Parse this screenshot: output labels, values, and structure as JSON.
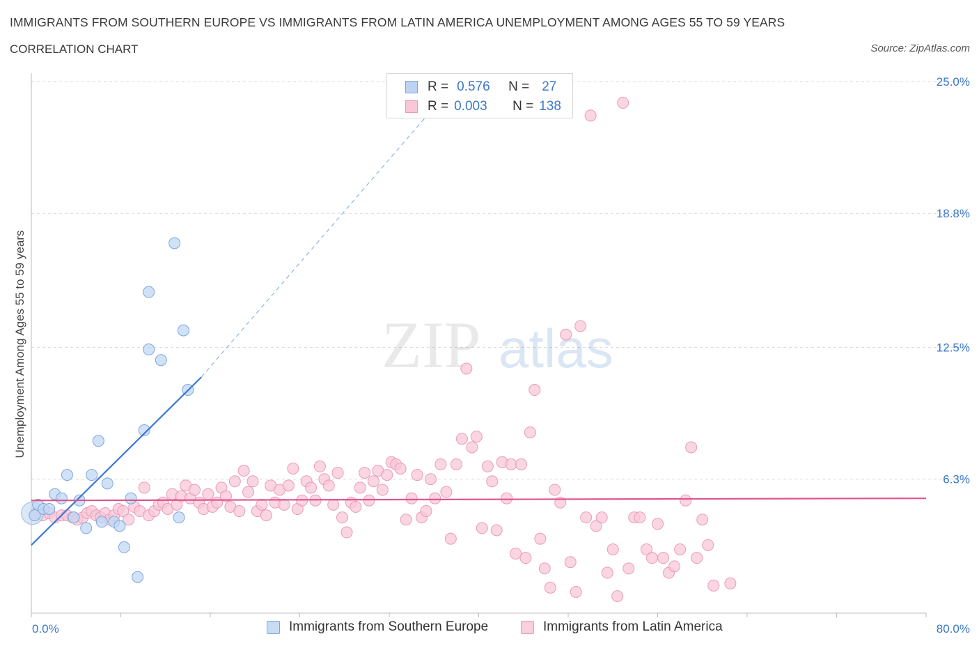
{
  "title": "IMMIGRANTS FROM SOUTHERN EUROPE VS IMMIGRANTS FROM LATIN AMERICA UNEMPLOYMENT AMONG AGES 55 TO 59 YEARS",
  "subtitle": "CORRELATION CHART",
  "source": "Source: ZipAtlas.com",
  "watermark": {
    "zip": "ZIP",
    "atlas": "atlas"
  },
  "legend_top": {
    "rows": [
      {
        "r_label": "R =",
        "r_value": "0.576",
        "n_label": "N =",
        "n_value": "27",
        "color": "#7aa7e0",
        "fill": "#bcd3f3"
      },
      {
        "r_label": "R =",
        "r_value": "0.003",
        "n_label": "N =",
        "n_value": "138",
        "color": "#eb9ab8",
        "fill": "#f8c6d7"
      }
    ]
  },
  "legend_bottom": [
    {
      "label": "Immigrants from Southern Europe",
      "color": "#7aa7e0",
      "fill": "#bcd3f3"
    },
    {
      "label": "Immigrants from Latin America",
      "color": "#eb9ab8",
      "fill": "#f8c6d7"
    }
  ],
  "chart_data": {
    "type": "scatter",
    "ylabel": "Unemployment Among Ages 55 to 59 years",
    "xlabel": "",
    "x_tick_labels": [
      "0.0%",
      "80.0%"
    ],
    "y_tick_labels": [
      "6.3%",
      "12.5%",
      "18.8%",
      "25.0%"
    ],
    "y_ticks": [
      6.3,
      12.5,
      18.8,
      25.0
    ],
    "xlim": [
      0,
      80
    ],
    "ylim": [
      0,
      25.0
    ],
    "grid": true,
    "colors": {
      "blue": "#3b78d4",
      "pink": "#e0548a",
      "blue_fill": "#c2d7f3",
      "pink_fill": "#f8c8d8"
    },
    "series": [
      {
        "name": "Immigrants from Southern Europe",
        "color": "#3b78d4",
        "points": [
          [
            0.3,
            4.6
          ],
          [
            0.6,
            5.1
          ],
          [
            1.1,
            4.9
          ],
          [
            1.6,
            4.9
          ],
          [
            2.1,
            5.6
          ],
          [
            2.7,
            5.4
          ],
          [
            3.2,
            6.5
          ],
          [
            3.8,
            4.5
          ],
          [
            4.3,
            5.3
          ],
          [
            4.9,
            4.0
          ],
          [
            5.4,
            6.5
          ],
          [
            6.0,
            8.1
          ],
          [
            6.3,
            4.3
          ],
          [
            6.8,
            6.1
          ],
          [
            7.4,
            4.3
          ],
          [
            7.9,
            4.1
          ],
          [
            8.3,
            3.1
          ],
          [
            8.9,
            5.4
          ],
          [
            9.5,
            1.7
          ],
          [
            10.1,
            8.6
          ],
          [
            10.5,
            12.4
          ],
          [
            10.5,
            15.1
          ],
          [
            11.6,
            11.9
          ],
          [
            12.8,
            17.4
          ],
          [
            13.2,
            4.5
          ],
          [
            13.6,
            13.3
          ],
          [
            14.0,
            10.5
          ]
        ],
        "trend": {
          "x": [
            0,
            15.2
          ],
          "y": [
            3.2,
            11.1
          ],
          "extended_to": [
            38,
            25.0
          ]
        }
      },
      {
        "name": "Immigrants from Latin America",
        "color": "#e0548a",
        "points": [
          [
            0.4,
            4.7
          ],
          [
            1.0,
            4.6
          ],
          [
            1.6,
            4.7
          ],
          [
            2.1,
            4.5
          ],
          [
            2.7,
            4.6
          ],
          [
            3.2,
            4.6
          ],
          [
            3.7,
            4.5
          ],
          [
            4.1,
            4.4
          ],
          [
            4.6,
            4.5
          ],
          [
            5.0,
            4.7
          ],
          [
            5.4,
            4.8
          ],
          [
            5.8,
            4.6
          ],
          [
            6.2,
            4.5
          ],
          [
            6.6,
            4.7
          ],
          [
            7.0,
            4.4
          ],
          [
            7.4,
            4.6
          ],
          [
            7.8,
            4.9
          ],
          [
            8.2,
            4.8
          ],
          [
            8.7,
            4.4
          ],
          [
            9.2,
            5.0
          ],
          [
            9.7,
            4.8
          ],
          [
            10.1,
            5.9
          ],
          [
            10.5,
            4.6
          ],
          [
            11.0,
            4.8
          ],
          [
            11.4,
            5.1
          ],
          [
            11.8,
            5.2
          ],
          [
            12.2,
            4.9
          ],
          [
            12.6,
            5.6
          ],
          [
            13.0,
            5.1
          ],
          [
            13.4,
            5.5
          ],
          [
            13.8,
            6.0
          ],
          [
            14.2,
            5.4
          ],
          [
            14.6,
            5.8
          ],
          [
            15.0,
            5.2
          ],
          [
            15.4,
            4.9
          ],
          [
            15.8,
            5.6
          ],
          [
            16.2,
            5.0
          ],
          [
            16.6,
            5.2
          ],
          [
            17.0,
            5.9
          ],
          [
            17.4,
            5.5
          ],
          [
            17.8,
            5.0
          ],
          [
            18.2,
            6.2
          ],
          [
            18.6,
            4.8
          ],
          [
            19.0,
            6.7
          ],
          [
            19.4,
            5.7
          ],
          [
            19.8,
            6.2
          ],
          [
            20.2,
            4.8
          ],
          [
            20.6,
            5.1
          ],
          [
            21.0,
            4.6
          ],
          [
            21.4,
            6.0
          ],
          [
            21.8,
            5.2
          ],
          [
            22.2,
            5.8
          ],
          [
            22.6,
            5.1
          ],
          [
            23.0,
            6.0
          ],
          [
            23.4,
            6.8
          ],
          [
            23.8,
            4.9
          ],
          [
            24.2,
            5.3
          ],
          [
            24.6,
            6.2
          ],
          [
            25.0,
            5.9
          ],
          [
            25.4,
            5.3
          ],
          [
            25.8,
            6.9
          ],
          [
            26.2,
            6.3
          ],
          [
            26.6,
            6.0
          ],
          [
            27.0,
            5.1
          ],
          [
            27.4,
            6.6
          ],
          [
            27.8,
            4.5
          ],
          [
            28.2,
            3.8
          ],
          [
            28.6,
            5.2
          ],
          [
            29.0,
            5.0
          ],
          [
            29.4,
            5.9
          ],
          [
            29.8,
            6.6
          ],
          [
            30.2,
            5.3
          ],
          [
            30.6,
            6.2
          ],
          [
            31.0,
            6.7
          ],
          [
            31.4,
            5.8
          ],
          [
            31.8,
            6.5
          ],
          [
            32.2,
            7.1
          ],
          [
            32.6,
            7.0
          ],
          [
            33.0,
            6.8
          ],
          [
            33.5,
            4.4
          ],
          [
            34.0,
            5.4
          ],
          [
            34.5,
            6.5
          ],
          [
            34.9,
            4.5
          ],
          [
            35.3,
            4.8
          ],
          [
            35.7,
            6.3
          ],
          [
            36.1,
            5.4
          ],
          [
            36.6,
            7.0
          ],
          [
            37.1,
            5.7
          ],
          [
            37.5,
            3.5
          ],
          [
            38.0,
            7.0
          ],
          [
            38.5,
            8.2
          ],
          [
            38.9,
            11.5
          ],
          [
            39.4,
            7.8
          ],
          [
            39.8,
            8.3
          ],
          [
            40.3,
            4.0
          ],
          [
            40.8,
            6.9
          ],
          [
            41.2,
            6.2
          ],
          [
            41.6,
            3.9
          ],
          [
            42.1,
            7.1
          ],
          [
            42.5,
            5.4
          ],
          [
            42.9,
            7.0
          ],
          [
            43.3,
            2.8
          ],
          [
            43.8,
            7.0
          ],
          [
            44.2,
            2.6
          ],
          [
            44.6,
            8.5
          ],
          [
            45.0,
            10.5
          ],
          [
            45.5,
            3.5
          ],
          [
            45.9,
            2.1
          ],
          [
            46.4,
            1.2
          ],
          [
            46.8,
            5.8
          ],
          [
            47.3,
            5.2
          ],
          [
            47.8,
            13.1
          ],
          [
            48.2,
            2.4
          ],
          [
            48.7,
            1.0
          ],
          [
            49.1,
            13.5
          ],
          [
            49.6,
            4.5
          ],
          [
            50.0,
            23.4
          ],
          [
            50.5,
            4.1
          ],
          [
            51.0,
            4.5
          ],
          [
            51.5,
            1.9
          ],
          [
            52.0,
            3.0
          ],
          [
            52.4,
            0.8
          ],
          [
            52.9,
            24.0
          ],
          [
            53.4,
            2.1
          ],
          [
            53.9,
            4.5
          ],
          [
            54.4,
            4.5
          ],
          [
            55.0,
            3.0
          ],
          [
            55.5,
            2.6
          ],
          [
            56.0,
            4.2
          ],
          [
            56.5,
            2.6
          ],
          [
            57.0,
            1.9
          ],
          [
            57.5,
            2.2
          ],
          [
            58.0,
            3.0
          ],
          [
            58.5,
            5.3
          ],
          [
            59.0,
            7.8
          ],
          [
            59.5,
            2.6
          ],
          [
            60.0,
            4.4
          ],
          [
            60.5,
            3.2
          ],
          [
            61.0,
            1.3
          ],
          [
            62.5,
            1.4
          ]
        ],
        "trend": {
          "x": [
            0,
            80
          ],
          "y": [
            5.3,
            5.4
          ]
        }
      }
    ]
  }
}
